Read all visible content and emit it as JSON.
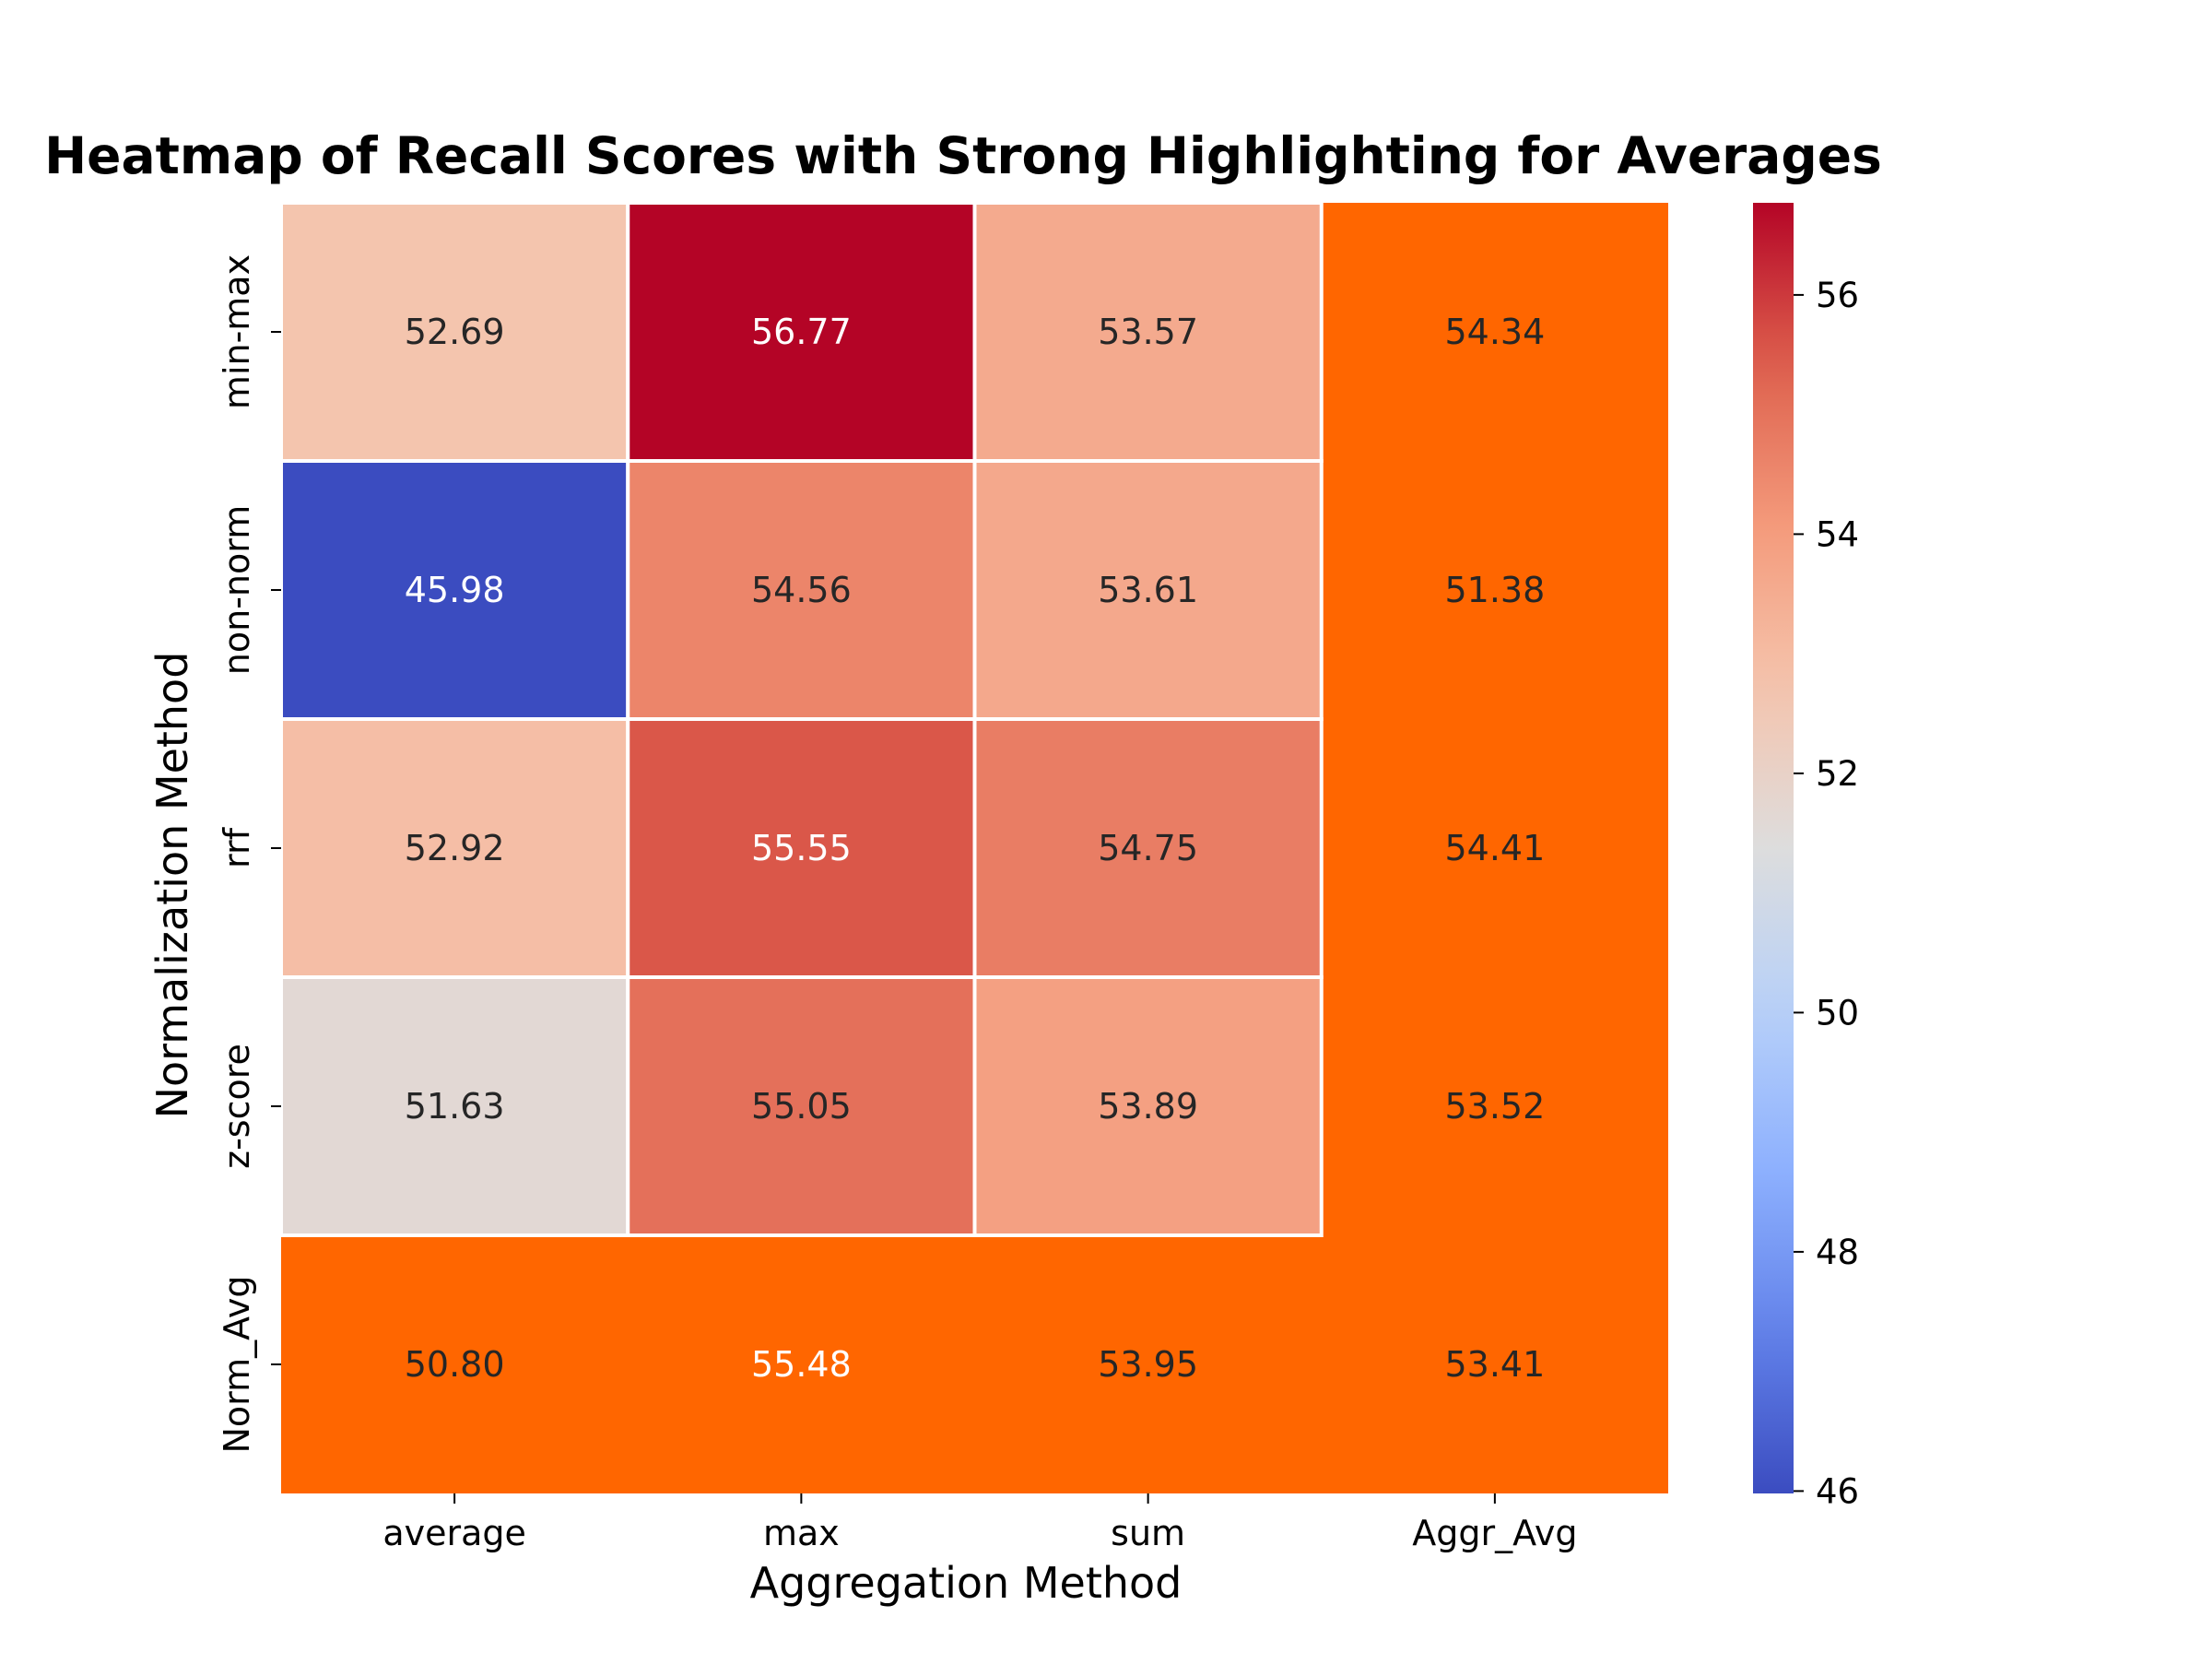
{
  "chart_data": {
    "type": "heatmap",
    "title": "Heatmap of Recall Scores with Strong Highlighting for Averages",
    "xlabel": "Aggregation Method",
    "ylabel": "Normalization Method",
    "x_categories": [
      "average",
      "max",
      "sum",
      "Aggr_Avg"
    ],
    "y_categories": [
      "min-max",
      "non-norm",
      "rrf",
      "z-score",
      "Norm_Avg"
    ],
    "values": [
      [
        52.69,
        56.77,
        53.57,
        54.34
      ],
      [
        45.98,
        54.56,
        53.61,
        51.38
      ],
      [
        52.92,
        55.55,
        54.75,
        54.41
      ],
      [
        51.63,
        55.05,
        53.89,
        53.52
      ],
      [
        50.8,
        55.48,
        53.95,
        53.41
      ]
    ],
    "value_labels": [
      [
        "52.69",
        "56.77",
        "53.57",
        "54.34"
      ],
      [
        "45.98",
        "54.56",
        "53.61",
        "51.38"
      ],
      [
        "52.92",
        "55.55",
        "54.75",
        "54.41"
      ],
      [
        "51.63",
        "55.05",
        "53.89",
        "53.52"
      ],
      [
        "50.80",
        "55.48",
        "53.95",
        "53.41"
      ]
    ],
    "colormap": "coolwarm",
    "vmin": 45.98,
    "vmax": 56.77,
    "highlight_color": "#ff6600",
    "highlighted": "averages (last row and last column)",
    "colorbar": {
      "ticks": [
        46,
        48,
        50,
        52,
        54,
        56
      ],
      "tick_labels": [
        "46",
        "48",
        "50",
        "52",
        "54",
        "56"
      ]
    }
  }
}
